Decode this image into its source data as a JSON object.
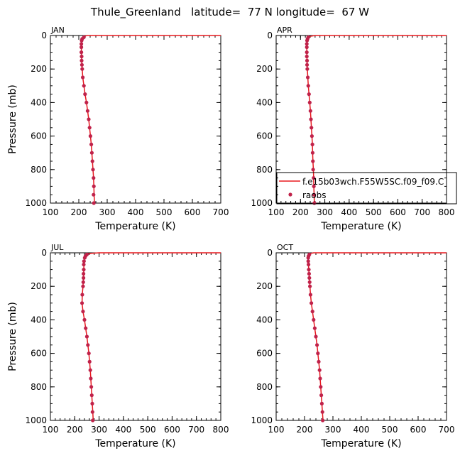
{
  "figure_title": "Thule_Greenland   latitude=  77 N longitude=  67 W",
  "colors": {
    "model_line": "#e8191e",
    "obs_marker": "#c0224a",
    "axis": "#000000"
  },
  "legend": {
    "model_label": "f.e15b03wch.F55W5SC.f09_f09.C",
    "obs_label": "raobs"
  },
  "chart_data": [
    {
      "type": "line",
      "panel_label": "JAN",
      "xlabel": "Temperature (K)",
      "ylabel": "Pressure (mb)",
      "xlim": [
        100,
        700
      ],
      "ylim": [
        1000,
        0
      ],
      "x_ticks": [
        100,
        200,
        300,
        400,
        500,
        600,
        700
      ],
      "y_ticks": [
        0,
        200,
        400,
        600,
        800,
        1000
      ],
      "series": [
        {
          "name": "f.e15b03wch.F55W5SC.f09_f09.C",
          "kind": "line",
          "points": [
            [
              228,
              0
            ],
            [
              224,
              3
            ],
            [
              218,
              7
            ],
            [
              214,
              15
            ],
            [
              210,
              30
            ],
            [
              209,
              60
            ],
            [
              209,
              100
            ],
            [
              210,
              150
            ],
            [
              212,
              200
            ],
            [
              214,
              250
            ],
            [
              218,
              300
            ],
            [
              222,
              350
            ],
            [
              227,
              400
            ],
            [
              231,
              450
            ],
            [
              235,
              500
            ],
            [
              238,
              550
            ],
            [
              241,
              600
            ],
            [
              244,
              650
            ],
            [
              246,
              700
            ],
            [
              248,
              750
            ],
            [
              250,
              800
            ],
            [
              252,
              850
            ],
            [
              253,
              900
            ],
            [
              254,
              950
            ],
            [
              255,
              1000
            ]
          ]
        },
        {
          "name": "raobs",
          "kind": "scatter",
          "points": [
            [
              218,
              10
            ],
            [
              212,
              20
            ],
            [
              210,
              30
            ],
            [
              209,
              50
            ],
            [
              209,
              70
            ],
            [
              209,
              100
            ],
            [
              210,
              125
            ],
            [
              210,
              150
            ],
            [
              211,
              175
            ],
            [
              212,
              200
            ],
            [
              214,
              250
            ],
            [
              218,
              300
            ],
            [
              222,
              350
            ],
            [
              227,
              400
            ],
            [
              231,
              450
            ],
            [
              235,
              500
            ],
            [
              238,
              550
            ],
            [
              241,
              600
            ],
            [
              244,
              650
            ],
            [
              246,
              700
            ],
            [
              248,
              750
            ],
            [
              250,
              800
            ],
            [
              252,
              850
            ],
            [
              253,
              900
            ],
            [
              252,
              950
            ],
            [
              253,
              1000
            ]
          ]
        }
      ]
    },
    {
      "type": "line",
      "panel_label": "APR",
      "xlabel": "Temperature (K)",
      "ylabel": "",
      "xlim": [
        100,
        800
      ],
      "ylim": [
        1000,
        0
      ],
      "x_ticks": [
        100,
        200,
        300,
        400,
        500,
        600,
        700,
        800
      ],
      "y_ticks": [
        0,
        200,
        400,
        600,
        800,
        1000
      ],
      "series": [
        {
          "name": "f.e15b03wch.F55W5SC.f09_f09.C",
          "kind": "line",
          "points": [
            [
              260,
              0
            ],
            [
              246,
              3
            ],
            [
              236,
              7
            ],
            [
              230,
              15
            ],
            [
              227,
              30
            ],
            [
              226,
              60
            ],
            [
              226,
              100
            ],
            [
              227,
              150
            ],
            [
              228,
              200
            ],
            [
              230,
              250
            ],
            [
              232,
              300
            ],
            [
              235,
              350
            ],
            [
              238,
              400
            ],
            [
              241,
              450
            ],
            [
              243,
              500
            ],
            [
              245,
              550
            ],
            [
              247,
              600
            ],
            [
              249,
              650
            ],
            [
              250,
              700
            ],
            [
              251,
              750
            ],
            [
              253,
              800
            ],
            [
              254,
              850
            ],
            [
              255,
              900
            ],
            [
              256,
              950
            ],
            [
              257,
              1000
            ]
          ]
        },
        {
          "name": "raobs",
          "kind": "scatter",
          "points": [
            [
              232,
              10
            ],
            [
              229,
              20
            ],
            [
              227,
              30
            ],
            [
              226,
              50
            ],
            [
              226,
              70
            ],
            [
              226,
              100
            ],
            [
              226,
              125
            ],
            [
              227,
              150
            ],
            [
              227,
              175
            ],
            [
              228,
              200
            ],
            [
              230,
              250
            ],
            [
              232,
              300
            ],
            [
              235,
              350
            ],
            [
              238,
              400
            ],
            [
              241,
              450
            ],
            [
              243,
              500
            ],
            [
              245,
              550
            ],
            [
              247,
              600
            ],
            [
              249,
              650
            ],
            [
              250,
              700
            ],
            [
              251,
              750
            ],
            [
              252,
              800
            ],
            [
              254,
              850
            ],
            [
              255,
              900
            ],
            [
              256,
              950
            ],
            [
              257,
              1000
            ]
          ]
        }
      ]
    },
    {
      "type": "line",
      "panel_label": "JUL",
      "xlabel": "Temperature (K)",
      "ylabel": "Pressure (mb)",
      "xlim": [
        100,
        800
      ],
      "ylim": [
        1000,
        0
      ],
      "x_ticks": [
        100,
        200,
        300,
        400,
        500,
        600,
        700,
        800
      ],
      "y_ticks": [
        0,
        200,
        400,
        600,
        800,
        1000
      ],
      "series": [
        {
          "name": "f.e15b03wch.F55W5SC.f09_f09.C",
          "kind": "line",
          "points": [
            [
              300,
              0
            ],
            [
              268,
              3
            ],
            [
              252,
              7
            ],
            [
              244,
              15
            ],
            [
              240,
              30
            ],
            [
              238,
              60
            ],
            [
              237,
              100
            ],
            [
              236,
              150
            ],
            [
              234,
              200
            ],
            [
              231,
              250
            ],
            [
              230,
              300
            ],
            [
              234,
              350
            ],
            [
              240,
              400
            ],
            [
              245,
              450
            ],
            [
              250,
              500
            ],
            [
              254,
              550
            ],
            [
              258,
              600
            ],
            [
              261,
              650
            ],
            [
              264,
              700
            ],
            [
              266,
              750
            ],
            [
              268,
              800
            ],
            [
              270,
              850
            ],
            [
              272,
              900
            ],
            [
              274,
              950
            ],
            [
              276,
              1000
            ]
          ]
        },
        {
          "name": "raobs",
          "kind": "scatter",
          "points": [
            [
              250,
              10
            ],
            [
              244,
              20
            ],
            [
              241,
              30
            ],
            [
              238,
              50
            ],
            [
              237,
              70
            ],
            [
              237,
              100
            ],
            [
              236,
              125
            ],
            [
              236,
              150
            ],
            [
              235,
              175
            ],
            [
              234,
              200
            ],
            [
              231,
              250
            ],
            [
              230,
              300
            ],
            [
              234,
              350
            ],
            [
              240,
              400
            ],
            [
              245,
              450
            ],
            [
              250,
              500
            ],
            [
              254,
              550
            ],
            [
              258,
              600
            ],
            [
              261,
              650
            ],
            [
              264,
              700
            ],
            [
              266,
              750
            ],
            [
              268,
              800
            ],
            [
              270,
              850
            ],
            [
              272,
              900
            ],
            [
              273,
              950
            ],
            [
              274,
              1000
            ]
          ]
        }
      ]
    },
    {
      "type": "line",
      "panel_label": "OCT",
      "xlabel": "Temperature (K)",
      "ylabel": "",
      "xlim": [
        100,
        700
      ],
      "ylim": [
        1000,
        0
      ],
      "x_ticks": [
        100,
        200,
        300,
        400,
        500,
        600,
        700
      ],
      "y_ticks": [
        0,
        200,
        400,
        600,
        800,
        1000
      ],
      "series": [
        {
          "name": "f.e15b03wch.F55W5SC.f09_f09.C",
          "kind": "line",
          "points": [
            [
              232,
              0
            ],
            [
              224,
              3
            ],
            [
              217,
              7
            ],
            [
              213,
              15
            ],
            [
              212,
              30
            ],
            [
              213,
              60
            ],
            [
              215,
              100
            ],
            [
              217,
              150
            ],
            [
              219,
              200
            ],
            [
              221,
              250
            ],
            [
              224,
              300
            ],
            [
              228,
              350
            ],
            [
              232,
              400
            ],
            [
              236,
              450
            ],
            [
              240,
              500
            ],
            [
              244,
              550
            ],
            [
              247,
              600
            ],
            [
              250,
              650
            ],
            [
              253,
              700
            ],
            [
              255,
              750
            ],
            [
              257,
              800
            ],
            [
              259,
              850
            ],
            [
              261,
              900
            ],
            [
              263,
              950
            ],
            [
              265,
              1000
            ]
          ]
        },
        {
          "name": "raobs",
          "kind": "scatter",
          "points": [
            [
              217,
              10
            ],
            [
              214,
              20
            ],
            [
              213,
              30
            ],
            [
              213,
              50
            ],
            [
              214,
              70
            ],
            [
              215,
              100
            ],
            [
              216,
              125
            ],
            [
              217,
              150
            ],
            [
              218,
              175
            ],
            [
              219,
              200
            ],
            [
              221,
              250
            ],
            [
              224,
              300
            ],
            [
              228,
              350
            ],
            [
              232,
              400
            ],
            [
              236,
              450
            ],
            [
              240,
              500
            ],
            [
              244,
              550
            ],
            [
              247,
              600
            ],
            [
              250,
              650
            ],
            [
              253,
              700
            ],
            [
              255,
              750
            ],
            [
              257,
              800
            ],
            [
              259,
              850
            ],
            [
              261,
              900
            ],
            [
              263,
              950
            ],
            [
              264,
              1000
            ]
          ]
        }
      ]
    }
  ]
}
